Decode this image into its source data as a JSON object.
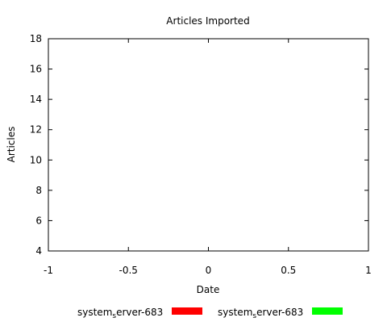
{
  "chart_data": {
    "type": "bar",
    "title": "Articles Imported",
    "xlabel": "Date",
    "ylabel": "Articles",
    "xlim": [
      -1,
      1
    ],
    "ylim": [
      4,
      18
    ],
    "x_ticks": [
      {
        "value": -1,
        "label": "-1"
      },
      {
        "value": -0.5,
        "label": "-0.5"
      },
      {
        "value": 0,
        "label": "0"
      },
      {
        "value": 0.5,
        "label": "0.5"
      },
      {
        "value": 1,
        "label": "1"
      }
    ],
    "y_ticks": [
      {
        "value": 4,
        "label": "4"
      },
      {
        "value": 6,
        "label": "6"
      },
      {
        "value": 8,
        "label": "8"
      },
      {
        "value": 10,
        "label": "10"
      },
      {
        "value": 12,
        "label": "12"
      },
      {
        "value": 14,
        "label": "14"
      },
      {
        "value": 16,
        "label": "16"
      },
      {
        "value": 18,
        "label": "18"
      }
    ],
    "grid": false,
    "legend_position": "bottom",
    "series": [
      {
        "name_main": "system",
        "name_sub": "s",
        "name_rest": "erver-683",
        "color": "#ff0000",
        "values": []
      },
      {
        "name_main": "system",
        "name_sub": "s",
        "name_rest": "erver-683",
        "color": "#00ff00",
        "values": []
      }
    ]
  }
}
